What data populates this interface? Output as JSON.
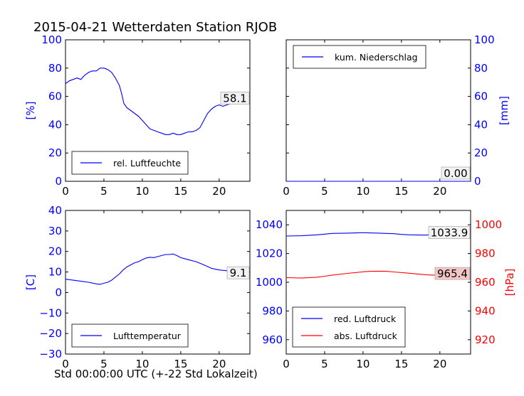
{
  "title": "2015-04-21 Wetterdaten Station RJOB",
  "xlabel": "Std 00:00:00 UTC (+-22 Std Lokalzeit)",
  "colors": {
    "blue": "#0000ff",
    "red": "#ff0000",
    "red_box": "#f5c6c6",
    "frame": "#000000"
  },
  "chart_data": [
    {
      "id": "humidity",
      "type": "line",
      "xlim": [
        0,
        24
      ],
      "ylim": [
        0,
        100
      ],
      "x_ticks": [
        "0",
        "5",
        "10",
        "15",
        "20"
      ],
      "y_ticks": [
        "0",
        "20",
        "40",
        "60",
        "80",
        "100"
      ],
      "ylabel": "[%]",
      "ylabel_side": "left",
      "legend_position": "lower-left",
      "grid": false,
      "annotation": "58.1",
      "series": [
        {
          "name": "rel. Luftfeuchte",
          "color": "#0000ff",
          "x": [
            0,
            0.5,
            1,
            1.5,
            2,
            2.5,
            3,
            3.5,
            4,
            4.5,
            5,
            5.5,
            6,
            6.5,
            7,
            7.3,
            7.6,
            8,
            8.5,
            9,
            9.5,
            10,
            10.5,
            11,
            11.5,
            12,
            12.5,
            13,
            13.5,
            14,
            14.5,
            15,
            15.5,
            16,
            16.5,
            17,
            17.5,
            18,
            18.5,
            19,
            19.5,
            20,
            20.5,
            21,
            21.5,
            22,
            22.5,
            23,
            23.5
          ],
          "y": [
            69,
            71,
            72,
            73,
            72,
            75,
            77,
            78,
            78,
            80,
            80,
            79,
            77,
            73,
            68,
            62,
            55,
            52,
            50,
            48,
            46,
            43,
            40,
            37,
            36,
            35,
            34,
            33,
            33,
            34,
            33,
            33,
            34,
            35,
            35,
            36,
            38,
            43,
            48,
            51,
            53,
            54,
            53,
            54,
            55,
            55,
            56,
            57,
            58.1
          ]
        }
      ]
    },
    {
      "id": "precipitation",
      "type": "line",
      "xlim": [
        0,
        24
      ],
      "ylim": [
        0,
        100
      ],
      "x_ticks": [
        "0",
        "5",
        "10",
        "15",
        "20"
      ],
      "y_ticks": [
        "0",
        "20",
        "40",
        "60",
        "80",
        "100"
      ],
      "ylabel": "[mm]",
      "ylabel_side": "right",
      "legend_position": "top-left",
      "grid": false,
      "annotation": "0.00",
      "series": [
        {
          "name": "kum. Niederschlag",
          "color": "#0000ff",
          "x": [
            0,
            23.9
          ],
          "y": [
            0,
            0
          ]
        }
      ]
    },
    {
      "id": "temperature",
      "type": "line",
      "xlim": [
        0,
        24
      ],
      "ylim": [
        -30,
        40
      ],
      "x_ticks": [
        "0",
        "5",
        "10",
        "15",
        "20"
      ],
      "y_ticks": [
        "−30",
        "−20",
        "−10",
        "0",
        "10",
        "20",
        "30",
        "40"
      ],
      "ylabel": "[C]",
      "ylabel_side": "left",
      "legend_position": "lower-left",
      "grid": false,
      "annotation": "9.1",
      "series": [
        {
          "name": "Lufttemperatur",
          "color": "#0000ff",
          "x": [
            0,
            1,
            2,
            3,
            4,
            4.5,
            5,
            5.5,
            6,
            6.5,
            7,
            7.5,
            8,
            8.5,
            9,
            9.5,
            10,
            10.5,
            11,
            11.5,
            12,
            12.5,
            13,
            13.5,
            14,
            14.5,
            15,
            15.5,
            16,
            17,
            18,
            19,
            20,
            21,
            22,
            23,
            23.8
          ],
          "y": [
            6.5,
            6,
            5.5,
            5,
            4.2,
            4,
            4.5,
            5,
            6,
            7.5,
            9,
            11,
            12.5,
            13.5,
            14.5,
            15,
            16,
            16.8,
            17.2,
            17,
            17.5,
            18,
            18.5,
            18.5,
            18.8,
            18,
            17,
            16.5,
            16,
            15,
            13.5,
            11.8,
            11,
            10.6,
            10.3,
            9.7,
            9.1
          ]
        }
      ]
    },
    {
      "id": "pressure",
      "type": "line",
      "xlim": [
        0,
        24
      ],
      "ylim": [
        950,
        1050
      ],
      "y_ticks": [
        "960",
        "980",
        "1000",
        "1020",
        "1040"
      ],
      "ylim_right": [
        910,
        1010
      ],
      "y_ticks_right": [
        "920",
        "940",
        "960",
        "980",
        "1000"
      ],
      "x_ticks": [
        "0",
        "5",
        "10",
        "15",
        "20"
      ],
      "ylabel_right": "[hPa]",
      "legend_position": "lower-left",
      "grid": false,
      "annotations": [
        "1033.9",
        "965.4"
      ],
      "series": [
        {
          "name": "red. Luftdruck",
          "color": "#0000ff",
          "axis": "left",
          "x": [
            0,
            2,
            4,
            5,
            6,
            8,
            10,
            12,
            14,
            15,
            16,
            18,
            19,
            20,
            22,
            23.8
          ],
          "y": [
            1032.2,
            1032.4,
            1033,
            1033.5,
            1034,
            1034.2,
            1034.5,
            1034.2,
            1033.8,
            1033.3,
            1033,
            1032.8,
            1033,
            1033.3,
            1033.6,
            1033.9
          ]
        },
        {
          "name": "abs. Luftdruck",
          "color": "#ff0000",
          "axis": "right",
          "x": [
            0,
            2,
            4,
            5,
            6,
            8,
            10,
            11,
            12,
            13,
            14,
            16,
            18,
            19,
            20,
            22,
            23.8
          ],
          "y": [
            963.2,
            962.9,
            963.5,
            964.2,
            965,
            966.2,
            967.3,
            967.6,
            967.7,
            967.6,
            967.2,
            966.3,
            965.3,
            965,
            965.2,
            965.3,
            965.4
          ]
        }
      ]
    }
  ]
}
